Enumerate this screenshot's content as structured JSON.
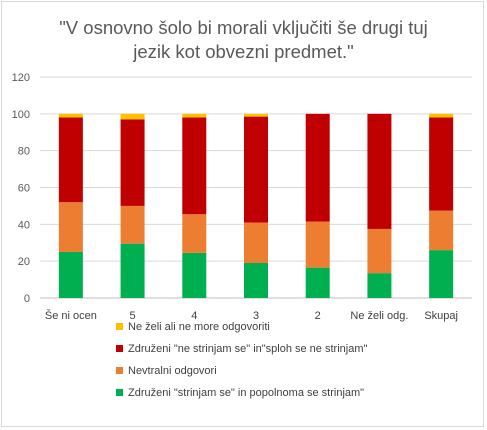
{
  "chart_data": {
    "type": "bar",
    "stacked": true,
    "title_lines": [
      "\"V osnovno šolo bi morali vključiti še drugi tuj",
      "jezik kot obvezni predmet.\""
    ],
    "categories": [
      "Še ni ocen",
      "5",
      "4",
      "3",
      "2",
      "Ne želi odg.",
      "Skupaj"
    ],
    "ylim": [
      0,
      120
    ],
    "yticks": [
      0,
      20,
      40,
      60,
      80,
      100,
      120
    ],
    "grid": true,
    "legend_position": "bottom",
    "series": [
      {
        "name": "Združeni  \"strinjam se\" in popolnoma se strinjam\"",
        "color": "#00b050",
        "values": [
          25,
          29.5,
          24.5,
          19,
          16.5,
          13.5,
          26
        ]
      },
      {
        "name": "Nevtralni odgovori",
        "color": "#ed7d31",
        "values": [
          27,
          20.5,
          21,
          22,
          25,
          24,
          21.5
        ]
      },
      {
        "name": "Združeni  \"ne strinjam se\" in\"sploh se ne strinjam\"",
        "color": "#c00000",
        "values": [
          46,
          47,
          52.5,
          57.5,
          58.5,
          62.5,
          50.5
        ]
      },
      {
        "name": "Ne želi ali ne more odgovoriti",
        "color": "#ffc000",
        "values": [
          2,
          3,
          2,
          1.5,
          0,
          0,
          2
        ]
      }
    ]
  }
}
